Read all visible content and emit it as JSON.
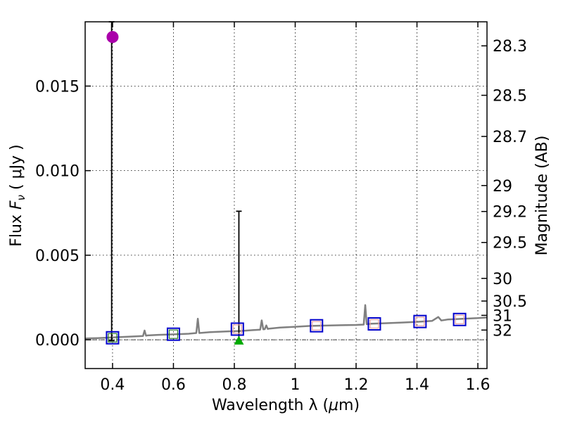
{
  "chart_data": {
    "type": "scatter",
    "xlabel": "Wavelength  λ (μm)",
    "ylabel": "Flux  F_ν  ( μJy )",
    "ylabel_parts": {
      "prefix": "Flux  ",
      "symbol": "F",
      "subscript": "ν",
      "suffix": "  ( μJy )"
    },
    "xlabel_parts": {
      "prefix": "Wavelength  λ (",
      "unit_mu": "μ",
      "unit_rest": "m)"
    },
    "y2label": "Magnitude (AB)",
    "xlim": [
      0.31,
      1.63
    ],
    "ylim": [
      -0.0017,
      0.0188
    ],
    "grid": true,
    "x_ticks": [
      {
        "value": 0.4,
        "label": "0.4"
      },
      {
        "value": 0.6,
        "label": "0.6"
      },
      {
        "value": 0.8,
        "label": "0.8"
      },
      {
        "value": 1.0,
        "label": "1"
      },
      {
        "value": 1.2,
        "label": "1.2"
      },
      {
        "value": 1.4,
        "label": "1.4"
      },
      {
        "value": 1.6,
        "label": "1.6"
      }
    ],
    "y_ticks": [
      {
        "value": 0.0,
        "label": "0.000"
      },
      {
        "value": 0.005,
        "label": "0.005"
      },
      {
        "value": 0.01,
        "label": "0.010"
      },
      {
        "value": 0.015,
        "label": "0.015"
      }
    ],
    "mag_ticks": [
      {
        "mag": 28.3,
        "label": "28.3"
      },
      {
        "mag": 28.5,
        "label": "28.5"
      },
      {
        "mag": 28.7,
        "label": "28.7"
      },
      {
        "mag": 29.0,
        "label": "29"
      },
      {
        "mag": 29.2,
        "label": "29.2"
      },
      {
        "mag": 29.5,
        "label": "29.5"
      },
      {
        "mag": 30.0,
        "label": "30"
      },
      {
        "mag": 30.5,
        "label": "30.5"
      },
      {
        "mag": 31.0,
        "label": "31"
      },
      {
        "mag": 32.0,
        "label": "32"
      }
    ],
    "zero_line": 0.0,
    "model_spectrum": {
      "color": "#808080",
      "x": [
        0.31,
        0.35,
        0.4,
        0.45,
        0.5,
        0.505,
        0.51,
        0.515,
        0.55,
        0.6,
        0.65,
        0.675,
        0.68,
        0.685,
        0.72,
        0.78,
        0.82,
        0.86,
        0.885,
        0.89,
        0.895,
        0.9,
        0.905,
        0.91,
        0.915,
        0.95,
        1.0,
        1.05,
        1.1,
        1.15,
        1.2,
        1.225,
        1.23,
        1.235,
        1.25,
        1.3,
        1.35,
        1.4,
        1.45,
        1.47,
        1.48,
        1.5,
        1.55,
        1.6,
        1.63
      ],
      "y": [
        8e-05,
        0.0001,
        0.00014,
        0.00018,
        0.00022,
        0.00055,
        0.00024,
        0.00026,
        0.00029,
        0.00032,
        0.00036,
        0.0004,
        0.00125,
        0.0004,
        0.00045,
        0.0005,
        0.00052,
        0.00057,
        0.0006,
        0.00115,
        0.00062,
        0.00063,
        0.00085,
        0.00064,
        0.00066,
        0.00072,
        0.00077,
        0.00082,
        0.00084,
        0.00086,
        0.00088,
        0.0009,
        0.00205,
        0.00092,
        0.00095,
        0.00098,
        0.00102,
        0.00106,
        0.00112,
        0.00135,
        0.00114,
        0.0012,
        0.00124,
        0.00128,
        0.00132
      ]
    },
    "model_photometry": {
      "color": "#2a7a2a",
      "alt_color": "#e8a0a0",
      "x": [
        0.4,
        0.6,
        0.81,
        1.07,
        1.26,
        1.41,
        1.54
      ],
      "y": [
        0.00012,
        0.00033,
        0.00063,
        0.00083,
        0.00094,
        0.00108,
        0.0012
      ]
    },
    "observed_boxes": {
      "color": "#0000cc",
      "x": [
        0.4,
        0.6,
        0.81,
        1.07,
        1.26,
        1.41,
        1.54
      ],
      "y": [
        0.00012,
        0.00033,
        0.00063,
        0.00083,
        0.00094,
        0.00108,
        0.0012
      ]
    },
    "detections": [
      {
        "x": 0.4,
        "y": 0.0179,
        "marker": "circle",
        "color": "#aa00aa"
      },
      {
        "x": 0.815,
        "y": -5e-05,
        "marker": "triangle",
        "color": "#00aa00"
      }
    ],
    "error_bars": [
      {
        "x": 0.397,
        "low": -5e-05,
        "high": 0.0188
      },
      {
        "x": 0.815,
        "low": -5e-05,
        "high": 0.0076
      }
    ]
  }
}
